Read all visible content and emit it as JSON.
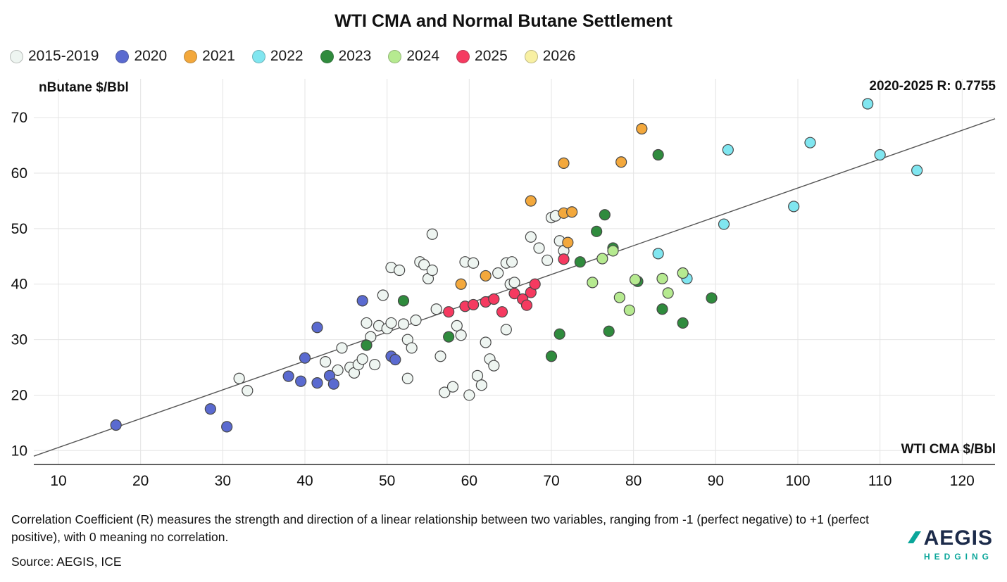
{
  "title": "WTI CMA and Normal Butane Settlement",
  "annotations": {
    "correlation": "2020-2025 R: 0.7755"
  },
  "footer": {
    "note": "Correlation Coefficient (R) measures the strength and direction of a linear relationship between two variables, ranging from -1 (perfect negative) to +1 (perfect positive), with 0 meaning no correlation.",
    "source": "Source: AEGIS, ICE"
  },
  "logo": {
    "name": "AEGIS",
    "sub": "HEDGING",
    "navy": "#1c2b4a",
    "teal": "#0aa69a"
  },
  "chart_data": {
    "type": "scatter",
    "title": "WTI CMA and Normal Butane Settlement",
    "xlabel": "WTI CMA $/Bbl",
    "ylabel": "nButane $/Bbl",
    "xlim": [
      7,
      124
    ],
    "ylim": [
      7.5,
      77
    ],
    "xticks": [
      10,
      20,
      30,
      40,
      50,
      60,
      70,
      80,
      90,
      100,
      110,
      120
    ],
    "yticks": [
      10,
      20,
      30,
      40,
      50,
      60,
      70
    ],
    "grid": true,
    "grid_color": "#e4e4e4",
    "axis_color": "#2b2b2b",
    "marker_stroke": "#474747",
    "legend_position": "top-left",
    "trendline": {
      "x1": 7,
      "y1": 9.0,
      "x2": 124,
      "y2": 69.8,
      "color": "#555555"
    },
    "series": [
      {
        "name": "2015-2019",
        "color": "#eef5f1",
        "points": [
          [
            32,
            23
          ],
          [
            33,
            20.8
          ],
          [
            42.5,
            26
          ],
          [
            44,
            24.5
          ],
          [
            44.5,
            28.5
          ],
          [
            45.5,
            25
          ],
          [
            46,
            24
          ],
          [
            46.5,
            25.5
          ],
          [
            47,
            26.5
          ],
          [
            47.5,
            33
          ],
          [
            48,
            30.5
          ],
          [
            48.5,
            25.5
          ],
          [
            49,
            32.5
          ],
          [
            49.5,
            38
          ],
          [
            50,
            32
          ],
          [
            50.5,
            33
          ],
          [
            50.5,
            43
          ],
          [
            51.5,
            42.5
          ],
          [
            52,
            32.8
          ],
          [
            52.5,
            30
          ],
          [
            52.5,
            23
          ],
          [
            53,
            28.5
          ],
          [
            53.5,
            33.5
          ],
          [
            54,
            44
          ],
          [
            54.5,
            43.5
          ],
          [
            55,
            41
          ],
          [
            55.5,
            42.5
          ],
          [
            55.5,
            49
          ],
          [
            56,
            35.5
          ],
          [
            56.5,
            27
          ],
          [
            57,
            20.5
          ],
          [
            58,
            21.5
          ],
          [
            58.5,
            32.5
          ],
          [
            59,
            30.8
          ],
          [
            59.5,
            44
          ],
          [
            60.5,
            43.8
          ],
          [
            60,
            20
          ],
          [
            61,
            23.5
          ],
          [
            61.5,
            21.8
          ],
          [
            62,
            29.5
          ],
          [
            62.5,
            26.5
          ],
          [
            63,
            25.3
          ],
          [
            63.5,
            42
          ],
          [
            64.5,
            31.8
          ],
          [
            64.5,
            43.8
          ],
          [
            65.2,
            44
          ],
          [
            65,
            40
          ],
          [
            65.5,
            40.3
          ],
          [
            67.5,
            48.5
          ],
          [
            68.5,
            46.5
          ],
          [
            69.5,
            44.3
          ],
          [
            70,
            52
          ],
          [
            70.5,
            52.3
          ],
          [
            71,
            47.8
          ],
          [
            71.5,
            46
          ]
        ]
      },
      {
        "name": "2020",
        "color": "#5a6ad0",
        "points": [
          [
            17,
            14.6
          ],
          [
            28.5,
            17.5
          ],
          [
            30.5,
            14.3
          ],
          [
            38,
            23.4
          ],
          [
            39.5,
            22.5
          ],
          [
            40,
            26.7
          ],
          [
            41.5,
            22.2
          ],
          [
            41.5,
            32.2
          ],
          [
            43,
            23.5
          ],
          [
            43.5,
            22
          ],
          [
            47,
            37
          ],
          [
            50.5,
            27
          ],
          [
            51,
            26.4
          ]
        ]
      },
      {
        "name": "2021",
        "color": "#f3a83c",
        "points": [
          [
            59,
            40
          ],
          [
            62,
            41.5
          ],
          [
            67.5,
            55
          ],
          [
            71.5,
            61.8
          ],
          [
            71.5,
            52.8
          ],
          [
            72.5,
            53
          ],
          [
            72,
            47.5
          ],
          [
            78.5,
            62
          ],
          [
            81,
            68
          ]
        ]
      },
      {
        "name": "2022",
        "color": "#80e6f0",
        "points": [
          [
            83,
            45.5
          ],
          [
            86.5,
            41
          ],
          [
            91,
            50.8
          ],
          [
            91.5,
            64.2
          ],
          [
            99.5,
            54
          ],
          [
            101.5,
            65.5
          ],
          [
            108.5,
            72.5
          ],
          [
            110,
            63.3
          ],
          [
            114.5,
            60.5
          ]
        ]
      },
      {
        "name": "2023",
        "color": "#2f8b3d",
        "points": [
          [
            47.5,
            29
          ],
          [
            52,
            37
          ],
          [
            57.5,
            30.5
          ],
          [
            70,
            27
          ],
          [
            71,
            31
          ],
          [
            73.5,
            44
          ],
          [
            75.5,
            49.5
          ],
          [
            76.5,
            52.5
          ],
          [
            77,
            31.5
          ],
          [
            77.5,
            46.5
          ],
          [
            80.5,
            40.5
          ],
          [
            83,
            63.3
          ],
          [
            83.5,
            35.5
          ],
          [
            86,
            33
          ],
          [
            89.5,
            37.5
          ]
        ]
      },
      {
        "name": "2024",
        "color": "#b6ea90",
        "points": [
          [
            75,
            40.3
          ],
          [
            76.2,
            44.6
          ],
          [
            77.5,
            46
          ],
          [
            78.3,
            37.6
          ],
          [
            79.5,
            35.3
          ],
          [
            80.2,
            40.8
          ],
          [
            83.5,
            41
          ],
          [
            84.2,
            38.4
          ],
          [
            86,
            42
          ]
        ]
      },
      {
        "name": "2025",
        "color": "#f53a60",
        "points": [
          [
            57.5,
            35
          ],
          [
            59.5,
            36
          ],
          [
            60.5,
            36.3
          ],
          [
            62,
            36.8
          ],
          [
            63,
            37.3
          ],
          [
            64,
            35
          ],
          [
            65.5,
            38.3
          ],
          [
            66.5,
            37.3
          ],
          [
            67,
            36.2
          ],
          [
            67.5,
            38.5
          ],
          [
            68,
            40
          ],
          [
            71.5,
            44.5
          ]
        ]
      },
      {
        "name": "2026",
        "color": "#f8f0a3",
        "points": []
      }
    ]
  }
}
